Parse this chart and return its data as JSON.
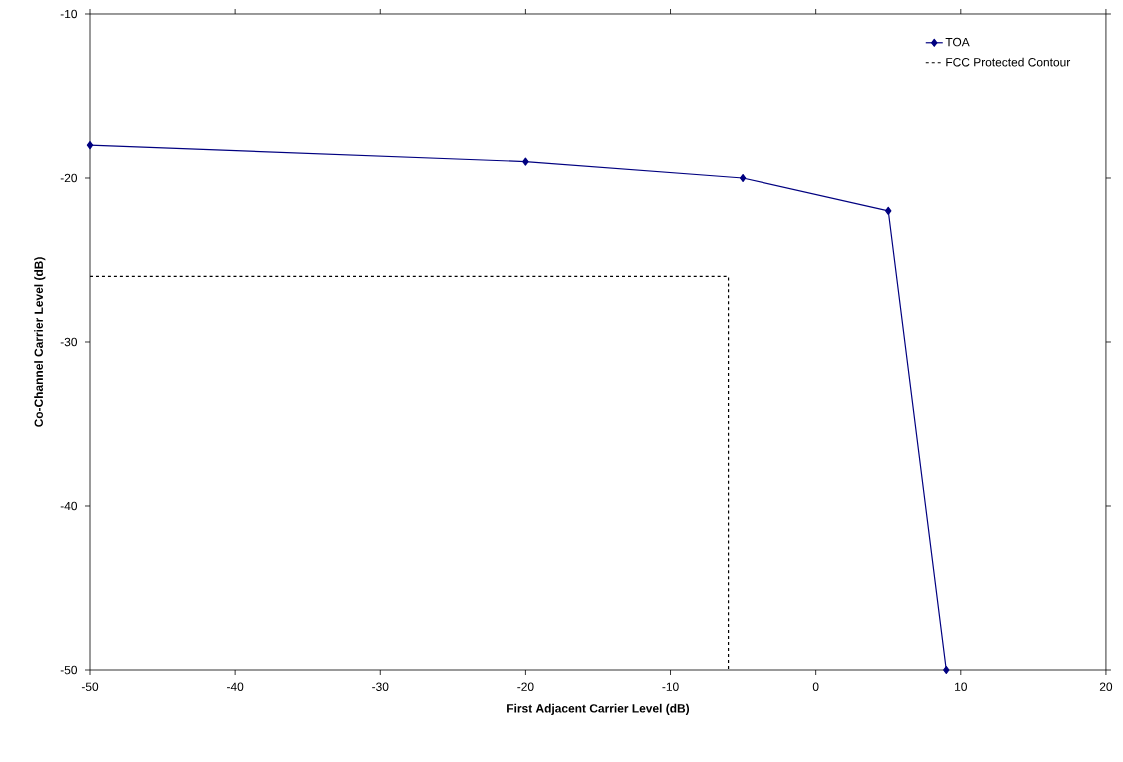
{
  "chart_data": {
    "type": "line",
    "xlabel": "First Adjacent Carrier Level (dB)",
    "ylabel": "Co-Channel Carrier Level (dB)",
    "xlim": [
      -50,
      20
    ],
    "xticks": [
      -50,
      -40,
      -30,
      -20,
      -10,
      0,
      10,
      20
    ],
    "ylim": [
      -50,
      -10
    ],
    "yticks": [
      -50,
      -40,
      -30,
      -20,
      -10
    ],
    "grid": false,
    "legend": "top right",
    "series": [
      {
        "name": "TOA",
        "color": "#000080",
        "x": [
          -50,
          -20,
          -5,
          5,
          9
        ],
        "values": [
          -18,
          -19,
          -20,
          -22,
          -50
        ],
        "marker": "diamond",
        "line_style": "solid"
      },
      {
        "name": "FCC Protected Contour",
        "color": "#000000",
        "x": [
          -50,
          -6,
          -6
        ],
        "values": [
          -26,
          -26,
          -50
        ],
        "marker": "none",
        "line_style": "dashed"
      }
    ]
  }
}
